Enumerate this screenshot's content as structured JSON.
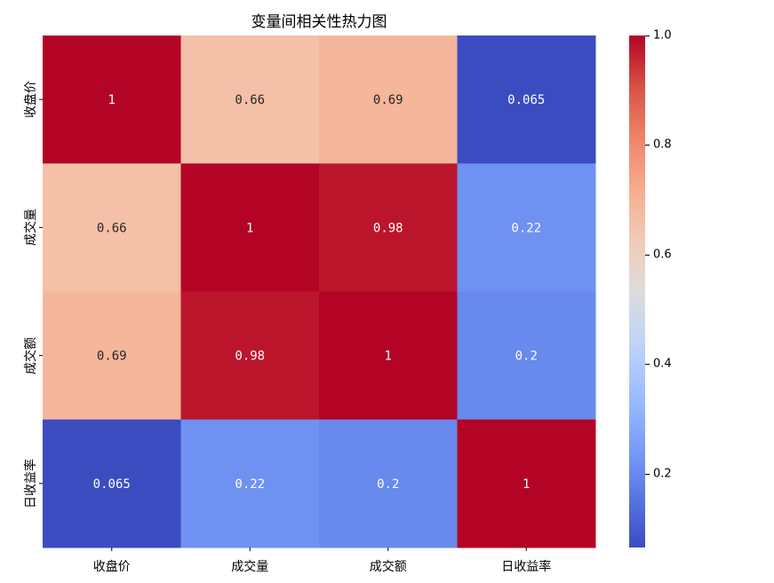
{
  "chart_data": {
    "type": "heatmap",
    "title": "变量间相关性热力图",
    "xlabels": [
      "收盘价",
      "成交量",
      "成交额",
      "日收益率"
    ],
    "ylabels": [
      "收盘价",
      "成交量",
      "成交额",
      "日收益率"
    ],
    "values": [
      [
        1,
        0.66,
        0.69,
        0.065
      ],
      [
        0.66,
        1,
        0.98,
        0.22
      ],
      [
        0.69,
        0.98,
        1,
        0.2
      ],
      [
        0.065,
        0.22,
        0.2,
        1
      ]
    ],
    "annotations": [
      [
        "1",
        "0.66",
        "0.69",
        "0.065"
      ],
      [
        "0.66",
        "1",
        "0.98",
        "0.22"
      ],
      [
        "0.69",
        "0.98",
        "1",
        "0.2"
      ],
      [
        "0.065",
        "0.22",
        "0.2",
        "1"
      ]
    ],
    "colormap": "coolwarm",
    "vmin": 0.065,
    "vmax": 1.0,
    "colorbar_ticks": [
      0.2,
      0.4,
      0.6,
      0.8,
      1.0
    ],
    "colorbar_tick_labels": [
      "0.2",
      "0.4",
      "0.6",
      "0.8",
      "1.0"
    ]
  }
}
